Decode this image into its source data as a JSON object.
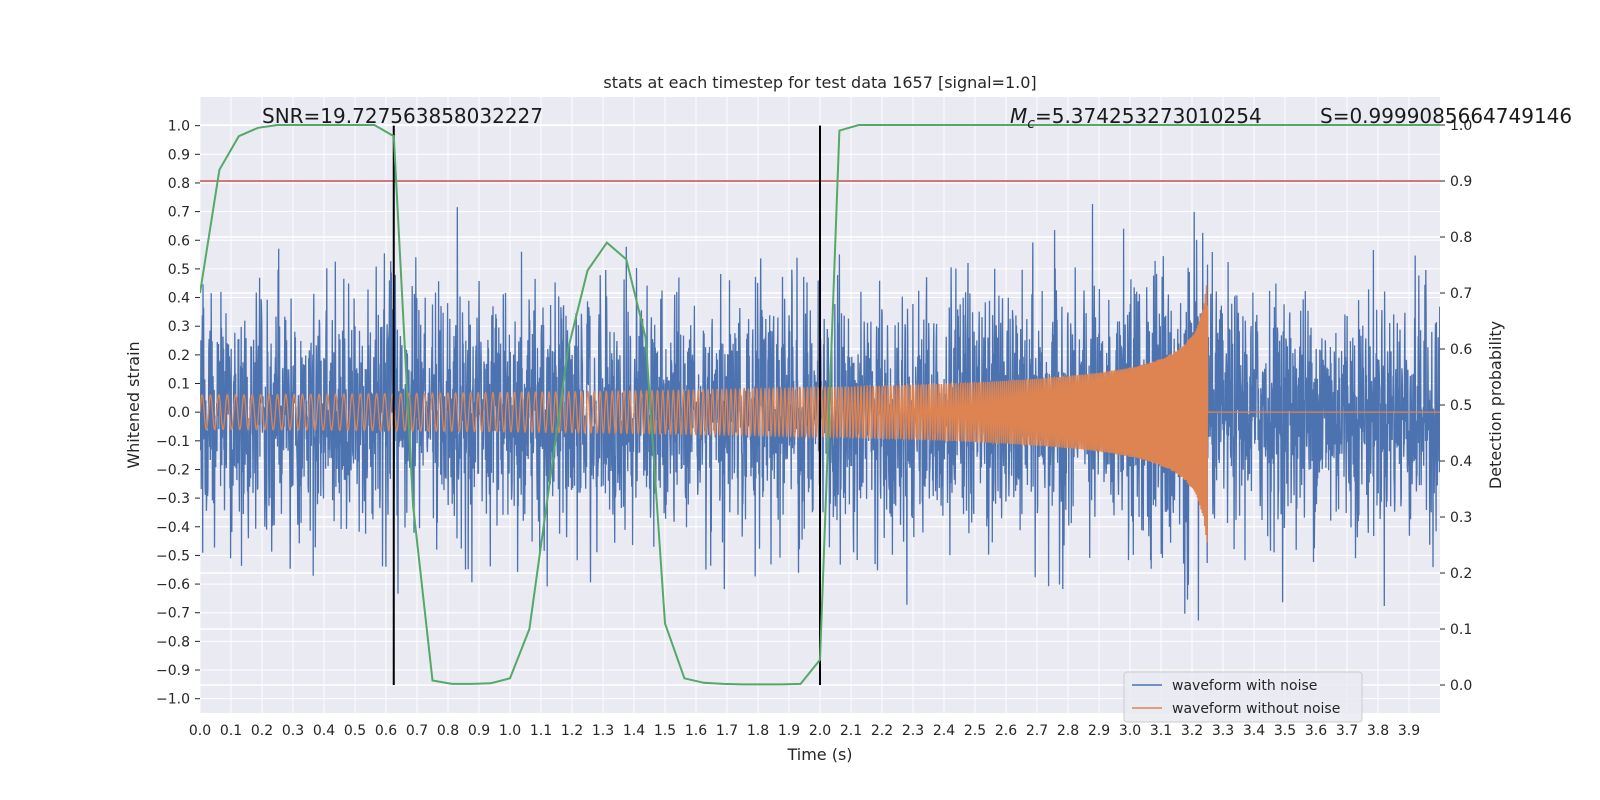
{
  "chart_data": {
    "type": "line",
    "title": "stats at each timestep for test data 1657 [signal=1.0]",
    "xlabel": "Time (s)",
    "ylabel": "Whitened strain",
    "ylabel_right": "Detection probability",
    "xlim": [
      0.0,
      4.0
    ],
    "ylim": [
      -1.05,
      1.1
    ],
    "ylim_right": [
      -0.05,
      1.05
    ],
    "x_ticks": [
      "0.0",
      "0.1",
      "0.2",
      "0.3",
      "0.4",
      "0.5",
      "0.6",
      "0.7",
      "0.8",
      "0.9",
      "1.0",
      "1.1",
      "1.2",
      "1.3",
      "1.4",
      "1.5",
      "1.6",
      "1.7",
      "1.8",
      "1.9",
      "2.0",
      "2.1",
      "2.2",
      "2.3",
      "2.4",
      "2.5",
      "2.6",
      "2.7",
      "2.8",
      "2.9",
      "3.0",
      "3.1",
      "3.2",
      "3.3",
      "3.4",
      "3.5",
      "3.6",
      "3.7",
      "3.8",
      "3.9"
    ],
    "y_ticks": [
      "1.0",
      "0.9",
      "0.8",
      "0.7",
      "0.6",
      "0.5",
      "0.4",
      "0.3",
      "0.2",
      "0.1",
      "0.0",
      "−0.1",
      "−0.2",
      "−0.3",
      "−0.4",
      "−0.5",
      "−0.6",
      "−0.7",
      "−0.8",
      "−0.9",
      "−1.0"
    ],
    "y_ticks_right": [
      "1.0",
      "0.9",
      "0.8",
      "0.7",
      "0.6",
      "0.5",
      "0.4",
      "0.3",
      "0.2",
      "0.1",
      "0.0"
    ],
    "annotations": {
      "snr": "SNR=19.727563858032227",
      "mc_symbol": "M",
      "mc_sub": "c",
      "mc_value": "=5.374253273010254",
      "s": "S=0.9999085664749146"
    },
    "threshold": 0.9,
    "vlines": [
      0.625,
      2.0
    ],
    "legend": [
      "waveform with noise",
      "waveform without noise"
    ],
    "colors": {
      "noise": "#4c72b0",
      "clean": "#dd8452",
      "prob": "#55a868",
      "threshold": "#c44e52",
      "vline": "#000000",
      "bg": "#eaeaf2",
      "grid": "#ffffff"
    },
    "series": [
      {
        "name": "Detection probability",
        "axis": "right",
        "x": [
          0.0,
          0.0625,
          0.125,
          0.1875,
          0.25,
          0.3125,
          0.375,
          0.4375,
          0.5,
          0.5625,
          0.625,
          0.6875,
          0.75,
          0.8125,
          0.875,
          0.9375,
          1.0,
          1.0625,
          1.125,
          1.1875,
          1.25,
          1.3125,
          1.375,
          1.4375,
          1.5,
          1.5625,
          1.625,
          1.6875,
          1.75,
          1.8125,
          1.875,
          1.9375,
          2.0,
          2.0625,
          2.125,
          4.0
        ],
        "y": [
          0.7,
          0.92,
          0.98,
          0.995,
          1.0,
          1.0,
          1.0,
          1.0,
          1.0,
          1.0,
          0.98,
          0.32,
          0.008,
          0.002,
          0.002,
          0.003,
          0.012,
          0.1,
          0.35,
          0.6,
          0.74,
          0.79,
          0.76,
          0.62,
          0.11,
          0.012,
          0.004,
          0.002,
          0.001,
          0.001,
          0.001,
          0.002,
          0.045,
          0.99,
          1.0,
          1.0
        ]
      },
      {
        "name": "waveform without noise",
        "axis": "left",
        "model": "chirp",
        "t_merge": 3.25,
        "amp_start": 0.06,
        "amp_peak": 0.55,
        "freq_start": 37,
        "freq_end": 160
      },
      {
        "name": "waveform with noise",
        "axis": "left",
        "model": "gaussian noise + chirp",
        "sigma": 0.2,
        "samples": 4096
      }
    ]
  }
}
